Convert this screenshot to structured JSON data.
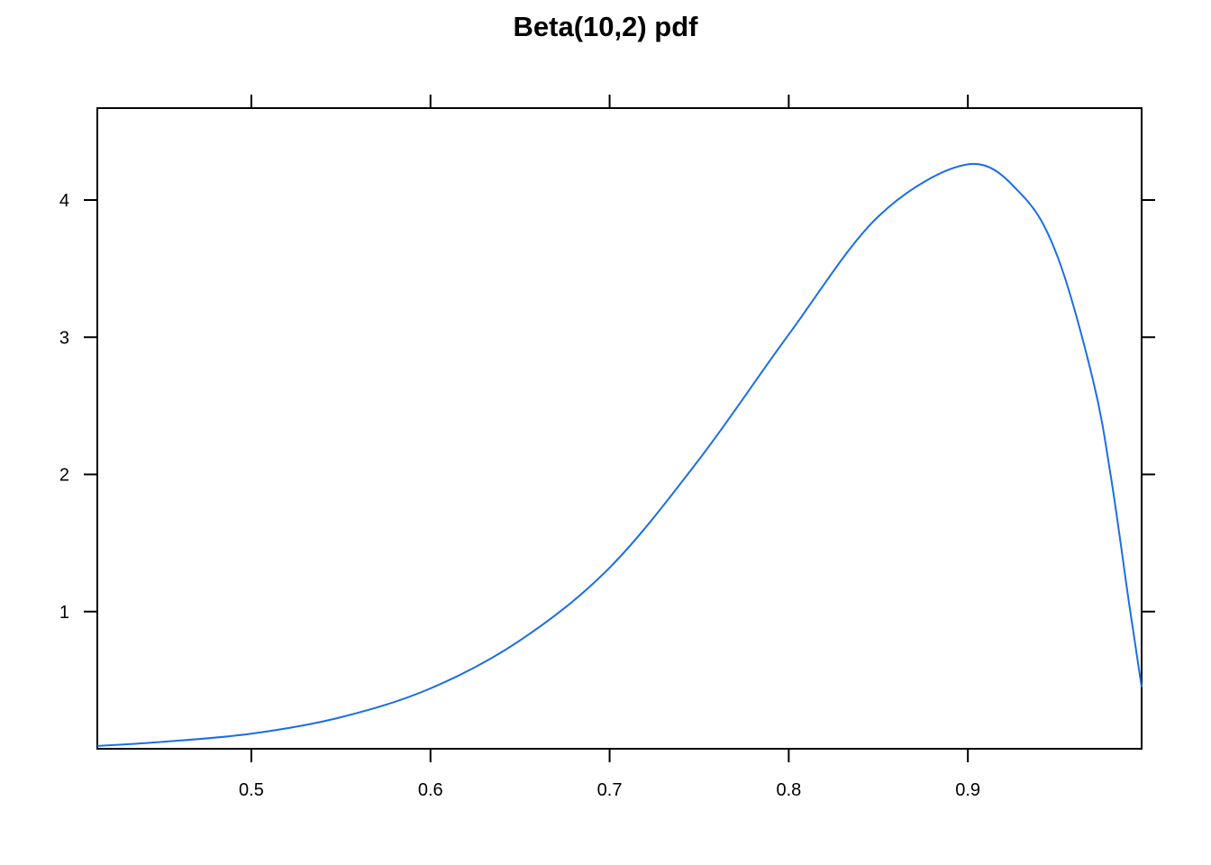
{
  "chart_data": {
    "type": "line",
    "title": "Beta(10,2) pdf",
    "xlabel": "",
    "ylabel": "",
    "distribution": {
      "family": "beta",
      "alpha": 10,
      "beta": 2
    },
    "xlim": [
      0.414,
      0.997
    ],
    "ylim": [
      0,
      4.67
    ],
    "x_ticks": [
      0.5,
      0.6,
      0.7,
      0.8,
      0.9
    ],
    "x_tick_labels": [
      "0.5",
      "0.6",
      "0.7",
      "0.8",
      "0.9"
    ],
    "y_ticks": [
      1,
      2,
      3,
      4
    ],
    "y_tick_labels": [
      "1",
      "2",
      "3",
      "4"
    ],
    "grid": false,
    "series": [
      {
        "color": "#1a6ee6",
        "x": [
          0.414,
          0.45,
          0.5,
          0.55,
          0.6,
          0.65,
          0.7,
          0.75,
          0.8,
          0.85,
          0.9,
          0.93,
          0.95,
          0.97,
          0.98,
          0.99,
          0.997
        ],
        "values": [
          0.02,
          0.05,
          0.11,
          0.23,
          0.44,
          0.79,
          1.32,
          2.11,
          3.02,
          3.88,
          4.26,
          4.04,
          3.59,
          2.68,
          1.97,
          1.06,
          0.45
        ]
      }
    ]
  }
}
